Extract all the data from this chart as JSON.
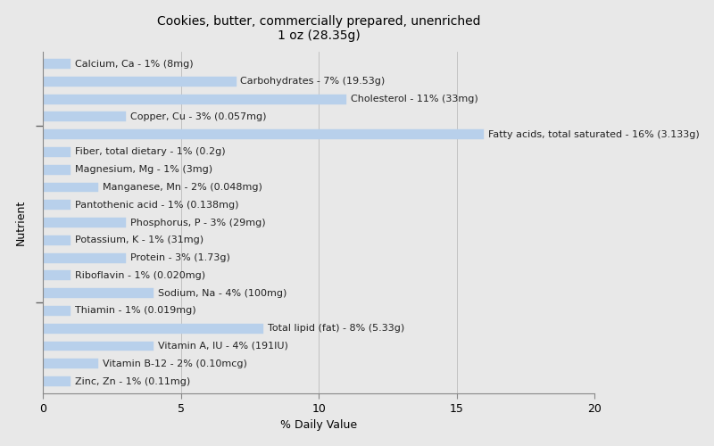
{
  "title": "Cookies, butter, commercially prepared, unenriched\n1 oz (28.35g)",
  "xlabel": "% Daily Value",
  "ylabel": "Nutrient",
  "xlim": [
    0,
    20
  ],
  "xticks": [
    0,
    5,
    10,
    15,
    20
  ],
  "background_color": "#e8e8e8",
  "plot_background_color": "#e8e8e8",
  "bar_color": "#b8d0eb",
  "bar_edge_color": "#b8d0eb",
  "nutrients": [
    "Calcium, Ca - 1% (8mg)",
    "Carbohydrates - 7% (19.53g)",
    "Cholesterol - 11% (33mg)",
    "Copper, Cu - 3% (0.057mg)",
    "Fatty acids, total saturated - 16% (3.133g)",
    "Fiber, total dietary - 1% (0.2g)",
    "Magnesium, Mg - 1% (3mg)",
    "Manganese, Mn - 2% (0.048mg)",
    "Pantothenic acid - 1% (0.138mg)",
    "Phosphorus, P - 3% (29mg)",
    "Potassium, K - 1% (31mg)",
    "Protein - 3% (1.73g)",
    "Riboflavin - 1% (0.020mg)",
    "Sodium, Na - 4% (100mg)",
    "Thiamin - 1% (0.019mg)",
    "Total lipid (fat) - 8% (5.33g)",
    "Vitamin A, IU - 4% (191IU)",
    "Vitamin B-12 - 2% (0.10mcg)",
    "Zinc, Zn - 1% (0.11mg)"
  ],
  "values": [
    1,
    7,
    11,
    3,
    16,
    1,
    1,
    2,
    1,
    3,
    1,
    3,
    1,
    4,
    1,
    8,
    4,
    2,
    1
  ],
  "title_fontsize": 10,
  "axis_label_fontsize": 9,
  "tick_fontsize": 9,
  "bar_label_fontsize": 8,
  "bar_height": 0.55,
  "figwidth": 8.0,
  "figheight": 5.0,
  "label_color": "#222222"
}
